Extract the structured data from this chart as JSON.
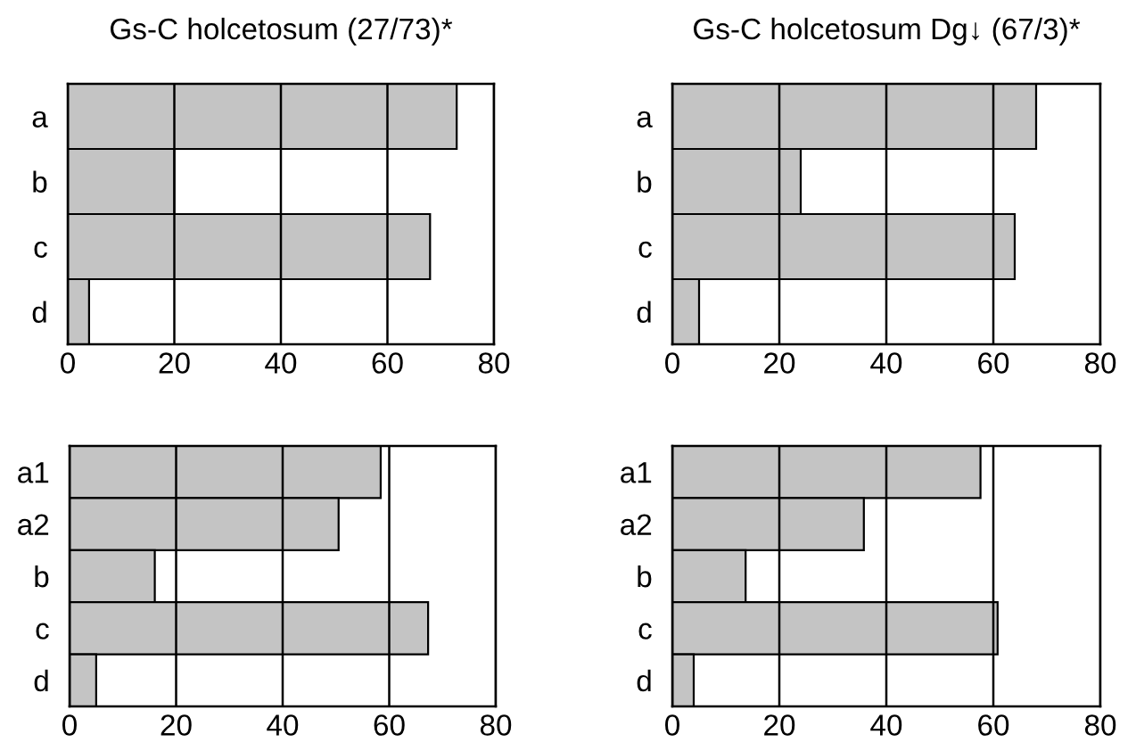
{
  "chart_data": [
    {
      "type": "bar",
      "orientation": "horizontal",
      "title": "Gs-C holcetosum (27/73)*",
      "categories": [
        "a",
        "b",
        "c",
        "d"
      ],
      "values": [
        73,
        20,
        68,
        4
      ],
      "color": "#c4c4c4",
      "xlim": [
        0,
        80
      ],
      "xticks": [
        0,
        20,
        40,
        60,
        80
      ],
      "grid": "x"
    },
    {
      "type": "bar",
      "orientation": "horizontal",
      "title": "Gs-C holcetosum Dg↓ (67/3)*",
      "categories": [
        "a",
        "b",
        "c",
        "d"
      ],
      "values": [
        68,
        24,
        64,
        5
      ],
      "color": "#c4c4c4",
      "xlim": [
        0,
        80
      ],
      "xticks": [
        0,
        20,
        40,
        60,
        80
      ],
      "grid": "x"
    },
    {
      "type": "bar",
      "orientation": "horizontal",
      "categories": [
        "a1",
        "a2",
        "b",
        "c",
        "d"
      ],
      "values": [
        58.4,
        50.5,
        16,
        67.3,
        5
      ],
      "color": "#c4c4c4",
      "xlim": [
        0,
        80
      ],
      "xticks": [
        0,
        20,
        40,
        60,
        80
      ],
      "grid": "x"
    },
    {
      "type": "bar",
      "orientation": "horizontal",
      "categories": [
        "a1",
        "a2",
        "b",
        "c",
        "d"
      ],
      "values": [
        57.6,
        35.8,
        13.7,
        60.8,
        4
      ],
      "color": "#c4c4c4",
      "xlim": [
        0,
        80
      ],
      "xticks": [
        0,
        20,
        40,
        60,
        80
      ],
      "grid": "x"
    }
  ]
}
